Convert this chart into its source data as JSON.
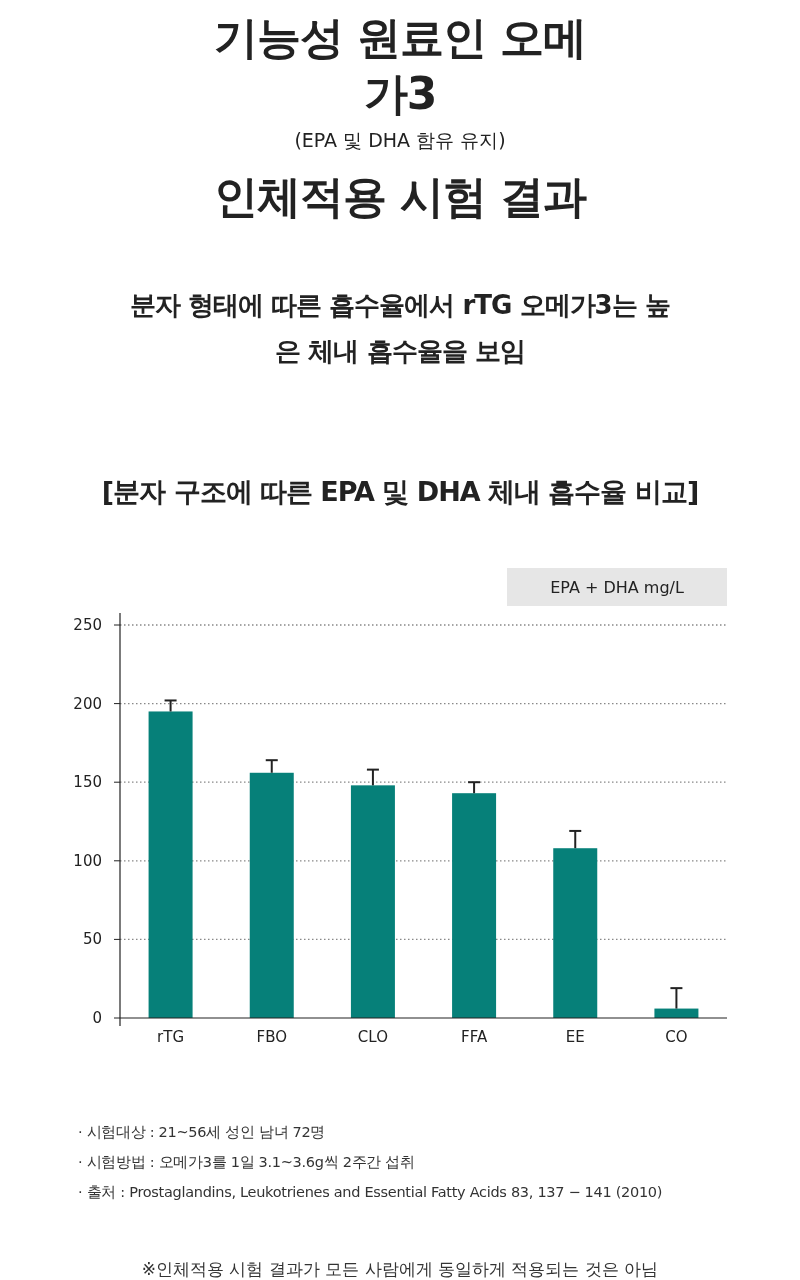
{
  "chart_data": {
    "type": "bar",
    "title": "기능성 원료인 오메가3",
    "subtitle": "분자 형태에 따른 흡수율에서 rTG 오메가3는 높은 체내 흡수율을 보임",
    "annotations": [
      "(EPA 및 DHA 함유 유지)",
      "인체적용 시험 결과",
      "[분자 구조에 따른 EPA 및 DHA 체내 흡수율 비교]",
      "· 시험대상 : 21~56세 성인 남녀 72명",
      "· 시험방법 : 오메가3를 1일 3.1~3.6g씩 2주간 섭취",
      "· 출처 : Prostaglandins, Leukotrienes and Essential Fatty Acids 83, 137 − 141 (2010)",
      "※인체적용 시험 결과가 모든 사람에게 동일하게 적용되는 것은 아님"
    ],
    "ylabel": "EPA + DHA mg/L",
    "categories": [
      "rTG",
      "FBO",
      "CLO",
      "FFA",
      "EE",
      "CO"
    ],
    "values": [
      195,
      156,
      148,
      143,
      108,
      6
    ],
    "errors": [
      [
        195,
        202
      ],
      [
        156,
        164
      ],
      [
        148,
        158
      ],
      [
        143,
        150
      ],
      [
        108,
        119
      ],
      [
        6,
        19
      ]
    ],
    "color": "#068079",
    "ylim": [
      0,
      250
    ],
    "yticks": [
      0,
      50,
      100,
      150,
      200,
      250
    ],
    "grid": "y"
  }
}
